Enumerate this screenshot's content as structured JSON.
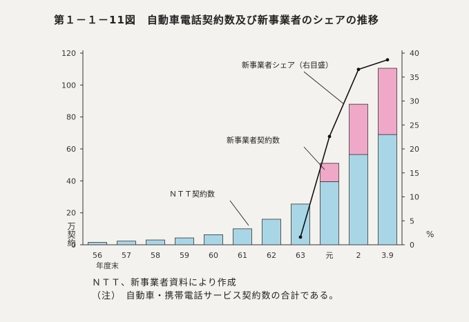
{
  "title": "第１－１－11図　自動車電話契約数及び新事業者のシェアの推移",
  "source": "ＮＴＴ、新事業者資料により作成",
  "note": "（注）　自動車・携帯電話サービス契約数の合計である。",
  "colors": {
    "ntt": "#a9d6e6",
    "new_operator": "#f0a8c8",
    "bar_outline": "#333333",
    "line": "#111111"
  },
  "chart_data": {
    "type": "bar",
    "stacked": true,
    "categories": [
      "56",
      "57",
      "58",
      "59",
      "60",
      "61",
      "62",
      "63",
      "元",
      "2",
      "3.9"
    ],
    "x_axis_suffix": "年度末",
    "ylabel": "万契約",
    "ylim": [
      0,
      120
    ],
    "yticks": [
      0,
      20,
      40,
      60,
      80,
      100,
      120
    ],
    "y2label": "%",
    "y2lim": [
      0,
      40
    ],
    "y2ticks": [
      0,
      5,
      10,
      15,
      20,
      25,
      30,
      35,
      40
    ],
    "series": [
      {
        "name": "ＮＴＴ契約数",
        "axis": "left",
        "kind": "bar",
        "values": [
          1.5,
          2.3,
          3.0,
          4.3,
          6.3,
          10.0,
          16.0,
          25.5,
          39.5,
          56.5,
          69.0
        ]
      },
      {
        "name": "新事業者契約数",
        "axis": "left",
        "kind": "bar",
        "values": [
          0,
          0,
          0,
          0,
          0,
          0,
          0,
          0,
          11.5,
          31.5,
          41.5
        ]
      },
      {
        "name": "新事業者シェア（右目盛）",
        "axis": "right",
        "kind": "line",
        "values": [
          null,
          null,
          null,
          null,
          null,
          null,
          null,
          1.6,
          22.6,
          36.6,
          38.6
        ]
      }
    ],
    "annotations": [
      "新事業者シェア（右目盛）",
      "新事業者契約数",
      "ＮＴＴ契約数"
    ],
    "grid": false,
    "legend": "none"
  }
}
